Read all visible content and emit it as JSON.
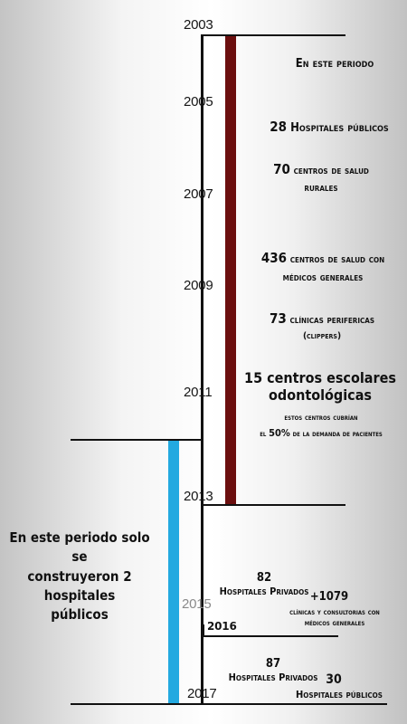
{
  "colors": {
    "first_period_bar": "#6b0e0e",
    "second_period_bar": "#23a9e0",
    "line": "#111111",
    "year_2015": "#8a8a8a"
  },
  "years": {
    "y2003": "2003",
    "y2005": "2005",
    "y2007": "2007",
    "y2009": "2009",
    "y2011": "2011",
    "y2013": "2013",
    "y2015": "2015",
    "y2016": "2016",
    "y2017": "2017"
  },
  "first_period": {
    "intro": "En este periodo",
    "hosp_num": "28",
    "hosp_label": "Hospitales públicos",
    "rural_num": "70",
    "rural_label_1": "centros de salud",
    "rural_label_2": "rurales",
    "med_num": "436",
    "med_label_1": "centros de salud con",
    "med_label_2": "médicos generales",
    "clin_num": "73",
    "clin_label": "clínicas perifericas",
    "clin_note": "(clippers)",
    "odont_num": "15",
    "odont_label_1": "centros escolares",
    "odont_label_2": "odontológicas",
    "note_1": "estos centros cubrían",
    "note_2a": "el",
    "note_2b": "50%",
    "note_2c": "de la demanda de pacientes"
  },
  "second_period": {
    "summary_1": "En este periodo solo se",
    "summary_2": "construyeron 2 hospitales",
    "summary_3": "públicos",
    "priv_2015_num": "82",
    "priv_2015_label": "Hospitales Privados",
    "clinics_2015_num": "+1079",
    "clinics_2015_label_1": "clínicas y consultorias con",
    "clinics_2015_label_2": "médicos generales",
    "priv_2017_num": "87",
    "priv_2017_label": "Hospitales Privados",
    "pub_2017_num": "30",
    "pub_2017_label": "Hospitales públicos"
  }
}
